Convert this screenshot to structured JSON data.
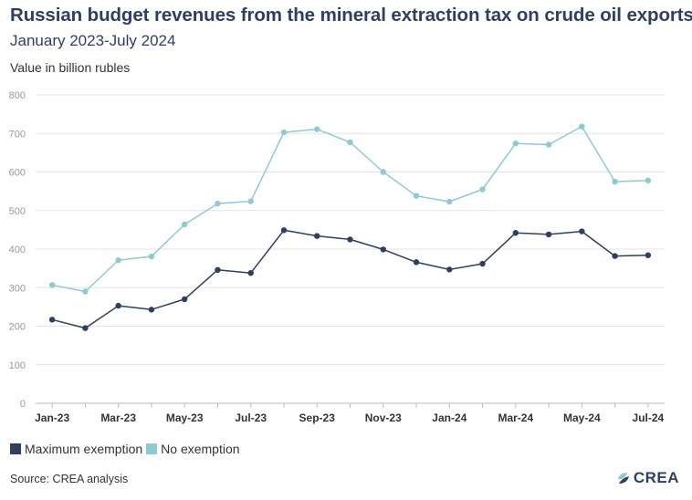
{
  "header": {
    "title": "Russian budget revenues from the mineral extraction tax on crude oil exports",
    "subtitle": "January 2023-July 2024",
    "unit": "Value in billion rubles"
  },
  "legend": {
    "items": [
      {
        "label": "Maximum exemption",
        "color": "#2f3e63"
      },
      {
        "label": "No exemption",
        "color": "#8ecad4"
      }
    ]
  },
  "footer": {
    "source": "Source: CREA analysis",
    "logo": "CREA"
  },
  "chart_data": {
    "type": "line",
    "title": "Russian budget revenues from the mineral extraction tax on crude oil exports",
    "subtitle": "January 2023-July 2024",
    "ylabel": "Value in billion rubles",
    "xlabel": "",
    "ylim": [
      0,
      800
    ],
    "yticks": [
      0,
      100,
      200,
      300,
      400,
      500,
      600,
      700,
      800
    ],
    "grid": true,
    "legend_position": "bottom-left",
    "categories": [
      "Jan-23",
      "Feb-23",
      "Mar-23",
      "Apr-23",
      "May-23",
      "Jun-23",
      "Jul-23",
      "Aug-23",
      "Sep-23",
      "Oct-23",
      "Nov-23",
      "Dec-23",
      "Jan-24",
      "Feb-24",
      "Mar-24",
      "Apr-24",
      "May-24",
      "Jun-24",
      "Jul-24"
    ],
    "tick_labels": [
      "Jan-23",
      "",
      "Mar-23",
      "",
      "May-23",
      "",
      "Jul-23",
      "",
      "Sep-23",
      "",
      "Nov-23",
      "",
      "Jan-24",
      "",
      "Mar-24",
      "",
      "May-24",
      "",
      "Jul-24"
    ],
    "series": [
      {
        "name": "Maximum exemption",
        "color": "#2f3e63",
        "values": [
          217,
          195,
          253,
          243,
          270,
          346,
          338,
          449,
          434,
          425,
          399,
          366,
          347,
          362,
          442,
          438,
          446,
          382,
          384
        ]
      },
      {
        "name": "No exemption",
        "color": "#8ecad4",
        "values": [
          307,
          290,
          371,
          381,
          464,
          518,
          524,
          703,
          711,
          677,
          600,
          538,
          523,
          555,
          674,
          671,
          718,
          575,
          578
        ]
      }
    ]
  }
}
